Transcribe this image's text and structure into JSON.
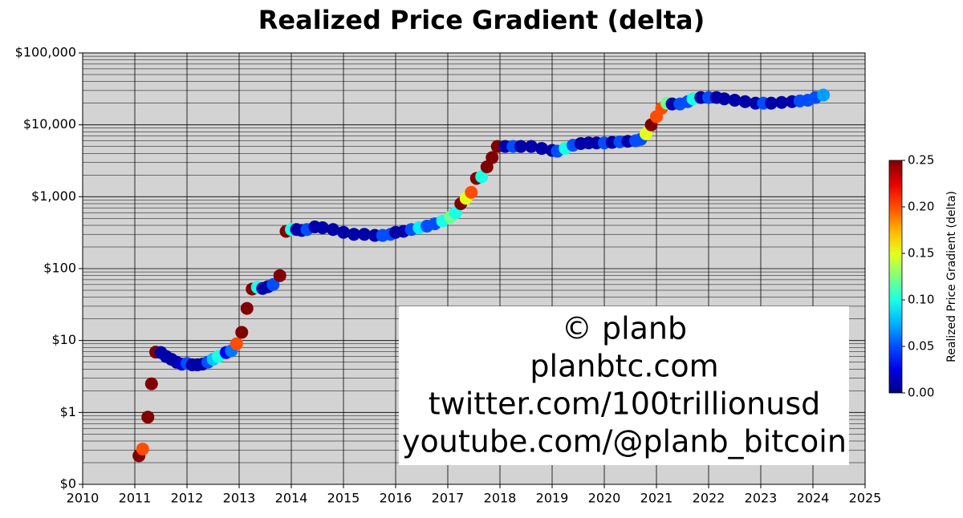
{
  "chart_data": {
    "type": "scatter",
    "title": "Realized Price Gradient (delta)",
    "log_y": true,
    "grid": true,
    "minor_grid": true,
    "background": "#d3d3d3",
    "colormap": "jet",
    "colorbar_label": "Realized Price Gradient (delta)",
    "clim": [
      0,
      0.25
    ],
    "cticks": [
      {
        "value": 0,
        "label": "0.00"
      },
      {
        "value": 0.05,
        "label": "0.05"
      },
      {
        "value": 0.1,
        "label": "0.10"
      },
      {
        "value": 0.15,
        "label": "0.15"
      },
      {
        "value": 0.2,
        "label": "0.20"
      },
      {
        "value": 0.25,
        "label": "0.25"
      }
    ],
    "xlim": [
      2010,
      2025
    ],
    "xticks": [
      2010,
      2011,
      2012,
      2013,
      2014,
      2015,
      2016,
      2017,
      2018,
      2019,
      2020,
      2021,
      2022,
      2023,
      2024,
      2025
    ],
    "ylim": [
      0.1,
      100000
    ],
    "yticks": [
      {
        "value": 0.1,
        "label": "$0"
      },
      {
        "value": 1,
        "label": "$1"
      },
      {
        "value": 10,
        "label": "$10"
      },
      {
        "value": 100,
        "label": "$100"
      },
      {
        "value": 1000,
        "label": "$1,000"
      },
      {
        "value": 10000,
        "label": "$10,000"
      },
      {
        "value": 100000,
        "label": "$100,000"
      }
    ],
    "watermark": [
      "© planb",
      "planbtc.com",
      "twitter.com/100trillionusd",
      "youtube.com/@planb_bitcoin"
    ],
    "x": [
      2011.08,
      2011.15,
      2011.25,
      2011.32,
      2011.4,
      2011.5,
      2011.6,
      2011.7,
      2011.8,
      2011.9,
      2012.0,
      2012.1,
      2012.2,
      2012.3,
      2012.4,
      2012.5,
      2012.6,
      2012.75,
      2012.85,
      2012.95,
      2013.05,
      2013.15,
      2013.25,
      2013.35,
      2013.45,
      2013.55,
      2013.65,
      2013.78,
      2013.9,
      2014.0,
      2014.1,
      2014.2,
      2014.3,
      2014.45,
      2014.6,
      2014.8,
      2015.0,
      2015.2,
      2015.4,
      2015.6,
      2015.75,
      2015.9,
      2016.0,
      2016.15,
      2016.3,
      2016.45,
      2016.6,
      2016.75,
      2016.9,
      2017.05,
      2017.15,
      2017.25,
      2017.35,
      2017.45,
      2017.55,
      2017.65,
      2017.75,
      2017.85,
      2017.95,
      2018.1,
      2018.25,
      2018.4,
      2018.6,
      2018.8,
      2019.0,
      2019.1,
      2019.25,
      2019.4,
      2019.55,
      2019.7,
      2019.85,
      2020.0,
      2020.15,
      2020.3,
      2020.45,
      2020.6,
      2020.7,
      2020.8,
      2020.9,
      2021.0,
      2021.1,
      2021.2,
      2021.3,
      2021.45,
      2021.6,
      2021.7,
      2021.85,
      2022.0,
      2022.15,
      2022.3,
      2022.5,
      2022.7,
      2022.9,
      2023.05,
      2023.2,
      2023.4,
      2023.6,
      2023.75,
      2023.9,
      2024.05,
      2024.2
    ],
    "values": [
      0.25,
      0.31,
      0.86,
      2.5,
      6.9,
      6.8,
      6,
      5.5,
      5,
      4.7,
      4.8,
      4.6,
      4.6,
      4.7,
      5,
      5.5,
      6,
      6.8,
      7.2,
      9,
      13,
      28,
      52,
      55,
      53,
      56,
      60,
      80,
      330,
      350,
      350,
      340,
      350,
      380,
      370,
      350,
      320,
      300,
      300,
      290,
      290,
      300,
      320,
      330,
      350,
      370,
      390,
      420,
      460,
      520,
      600,
      800,
      950,
      1150,
      1800,
      1900,
      2600,
      3500,
      5000,
      5000,
      5000,
      5000,
      5000,
      4700,
      4400,
      4300,
      4700,
      5200,
      5500,
      5600,
      5600,
      5600,
      5700,
      5800,
      5900,
      6000,
      6300,
      7500,
      10000,
      13000,
      17000,
      20000,
      19500,
      19500,
      21000,
      23000,
      24000,
      24000,
      24000,
      23000,
      22000,
      21000,
      20000,
      20000,
      20000,
      20500,
      21000,
      21500,
      22000,
      24000,
      26000
    ],
    "delta": [
      0.25,
      0.2,
      0.25,
      0.25,
      0.25,
      0.01,
      0.01,
      0.01,
      0.01,
      0.02,
      0.05,
      0.01,
      0.01,
      0.01,
      0.05,
      0.08,
      0.1,
      0.03,
      0.06,
      0.2,
      0.25,
      0.25,
      0.25,
      0.1,
      0.01,
      0.01,
      0.05,
      0.25,
      0.25,
      0.1,
      0.01,
      0.01,
      0.05,
      0.01,
      0.01,
      0.01,
      0.01,
      0.01,
      0.01,
      0.01,
      0.05,
      0.05,
      0.01,
      0.01,
      0.05,
      0.09,
      0.05,
      0.05,
      0.1,
      0.12,
      0.1,
      0.25,
      0.15,
      0.2,
      0.25,
      0.1,
      0.25,
      0.25,
      0.25,
      0.01,
      0.05,
      0.01,
      0.01,
      0.01,
      0.01,
      0.05,
      0.1,
      0.05,
      0.01,
      0.01,
      0.01,
      0.05,
      0.01,
      0.05,
      0.01,
      0.05,
      0.05,
      0.15,
      0.25,
      0.2,
      0.2,
      0.12,
      0.01,
      0.05,
      0.05,
      0.1,
      0.01,
      0.05,
      0.01,
      0.01,
      0.01,
      0.01,
      0.01,
      0.05,
      0.01,
      0.01,
      0.01,
      0.05,
      0.05,
      0.05,
      0.07
    ]
  }
}
